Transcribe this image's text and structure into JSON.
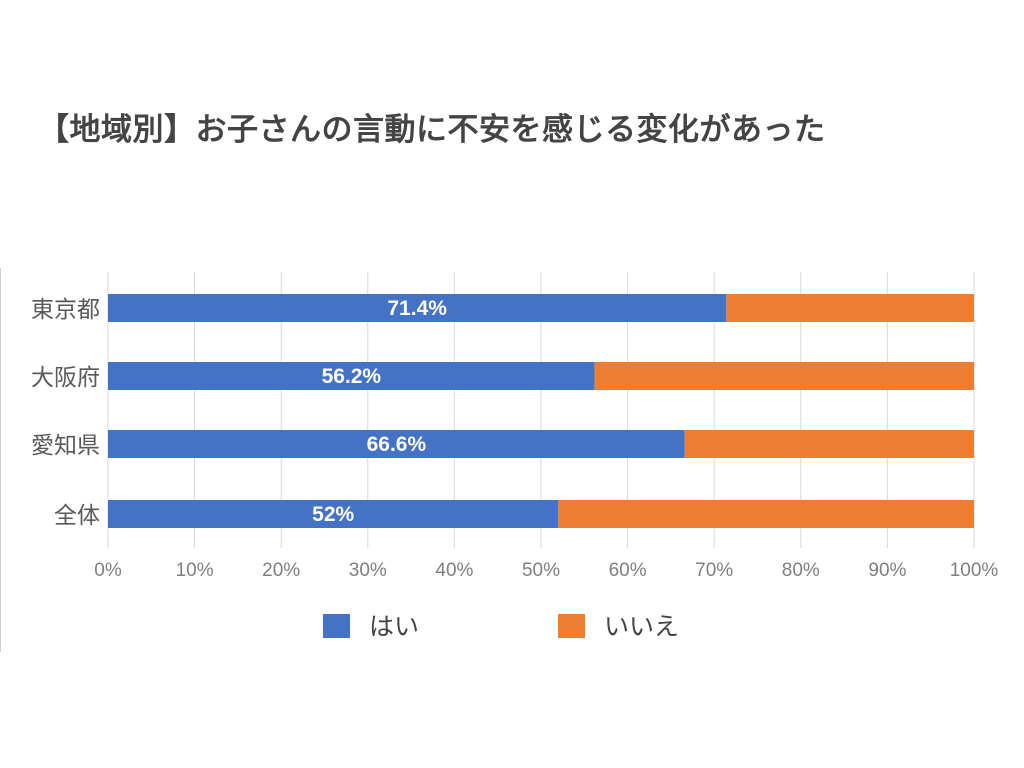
{
  "chart_data": {
    "type": "bar",
    "orientation": "horizontal",
    "stacked": "percent",
    "title": "【地域別】お子さんの言動に不安を感じる変化があった",
    "categories": [
      "東京都",
      "大阪府",
      "愛知県",
      "全体"
    ],
    "series": [
      {
        "name": "はい",
        "values": [
          71.4,
          56.2,
          66.6,
          52
        ],
        "labels": [
          "71.4%",
          "56.2%",
          "66.6%",
          "52%"
        ],
        "color": "#4472c4"
      },
      {
        "name": "いいえ",
        "values": [
          28.6,
          43.8,
          33.4,
          48
        ],
        "color": "#ed7d31"
      }
    ],
    "xlim": [
      0,
      100
    ],
    "x_ticks": [
      "0%",
      "10%",
      "20%",
      "30%",
      "40%",
      "50%",
      "60%",
      "70%",
      "80%",
      "90%",
      "100%"
    ],
    "grid": true,
    "legend": "bottom"
  }
}
